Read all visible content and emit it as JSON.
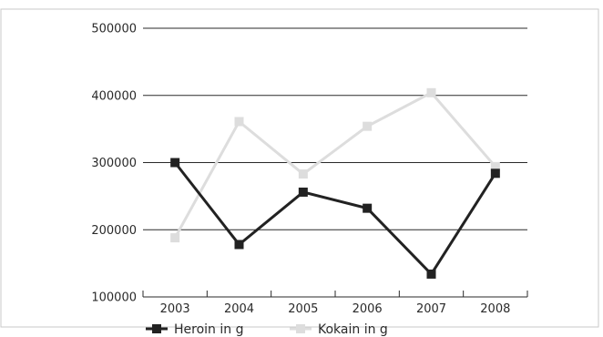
{
  "chart_data": {
    "type": "line",
    "title": "",
    "xlabel": "",
    "ylabel": "",
    "categories": [
      "2003",
      "2004",
      "2005",
      "2006",
      "2007",
      "2008"
    ],
    "ylim": [
      100000,
      500000
    ],
    "yticks": [
      "100000",
      "200000",
      "300000",
      "400000",
      "500000"
    ],
    "grid": true,
    "legend_position": "bottom-left",
    "series": [
      {
        "name": "Heroin in g",
        "color": "#222222",
        "marker": "square",
        "values": [
          300000,
          178000,
          256000,
          232000,
          134000,
          284000
        ]
      },
      {
        "name": "Kokain in g",
        "color": "#dddddd",
        "marker": "square",
        "values": [
          188000,
          361000,
          283000,
          354000,
          404000,
          294000
        ]
      }
    ]
  }
}
